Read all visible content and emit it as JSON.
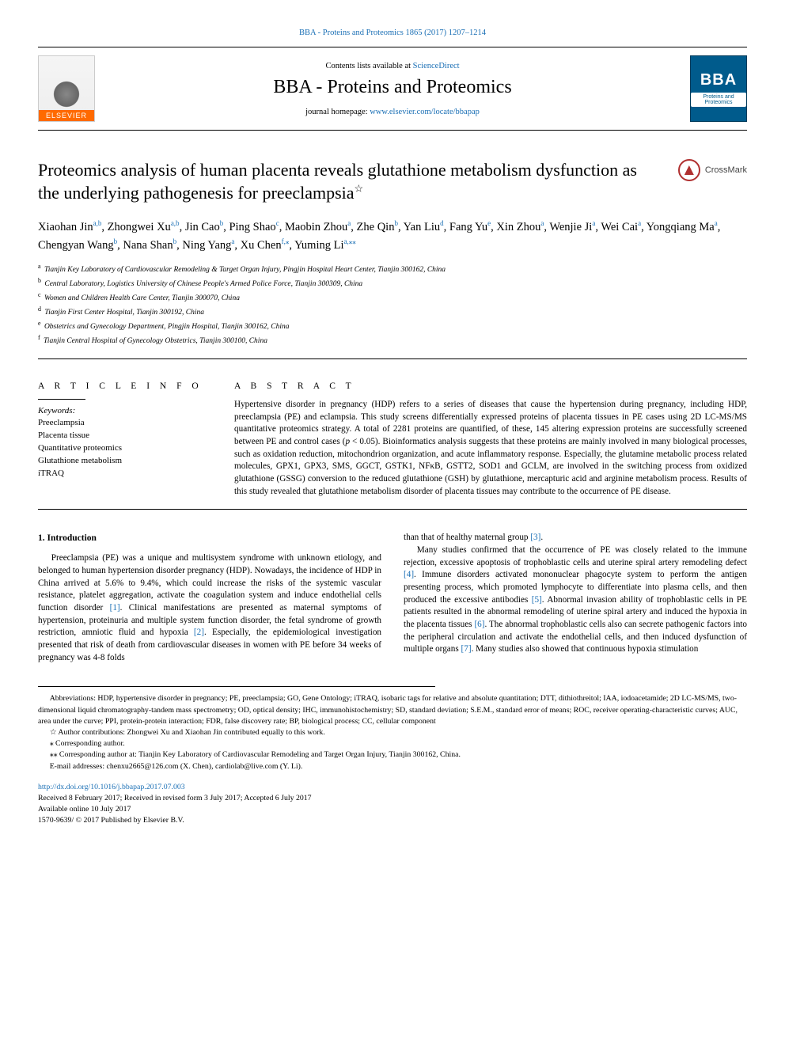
{
  "citation": "BBA - Proteins and Proteomics 1865 (2017) 1207–1214",
  "header": {
    "contents_prefix": "Contents lists available at ",
    "contents_link": "ScienceDirect",
    "journal_name": "BBA - Proteins and Proteomics",
    "homepage_prefix": "journal homepage: ",
    "homepage_link": "www.elsevier.com/locate/bbapap",
    "elsevier_label": "ELSEVIER",
    "bba_big": "BBA",
    "bba_sub": "Proteins and Proteomics"
  },
  "title": "Proteomics analysis of human placenta reveals glutathione metabolism dysfunction as the underlying pathogenesis for preeclampsia",
  "title_star": "☆",
  "crossmark_label": "CrossMark",
  "authors_html": "Xiaohan Jin|a,b|, Zhongwei Xu|a,b|, Jin Cao|b|, Ping Shao|c|, Maobin Zhou|a|, Zhe Qin|b|, Yan Liu|d|, Fang Yu|e|, Xin Zhou|a|, Wenjie Ji|a|, Wei Cai|a|, Yongqiang Ma|a|, Chengyan Wang|b|, Nana Shan|b|, Ning Yang|a|, Xu Chen|f,⁎|, Yuming Li|a,⁎⁎|",
  "affiliations": [
    {
      "sup": "a",
      "text": "Tianjin Key Laboratory of Cardiovascular Remodeling & Target Organ Injury, Pingjin Hospital Heart Center, Tianjin 300162, China"
    },
    {
      "sup": "b",
      "text": "Central Laboratory, Logistics University of Chinese People's Armed Police Force, Tianjin 300309, China"
    },
    {
      "sup": "c",
      "text": "Women and Children Health Care Center, Tianjin 300070, China"
    },
    {
      "sup": "d",
      "text": "Tianjin First Center Hospital, Tianjin 300192, China"
    },
    {
      "sup": "e",
      "text": "Obstetrics and Gynecology Department, Pingjin Hospital, Tianjin 300162, China"
    },
    {
      "sup": "f",
      "text": "Tianjin Central Hospital of Gynecology Obstetrics, Tianjin 300100, China"
    }
  ],
  "article_info_head": "A R T I C L E  I N F O",
  "keywords_label": "Keywords:",
  "keywords": [
    "Preeclampsia",
    "Placenta tissue",
    "Quantitative proteomics",
    "Glutathione metabolism",
    "iTRAQ"
  ],
  "abstract_head": "A B S T R A C T",
  "abstract": "Hypertensive disorder in pregnancy (HDP) refers to a series of diseases that cause the hypertension during pregnancy, including HDP, preeclampsia (PE) and eclampsia. This study screens differentially expressed proteins of placenta tissues in PE cases using 2D LC-MS/MS quantitative proteomics strategy. A total of 2281 proteins are quantified, of these, 145 altering expression proteins are successfully screened between PE and control cases (p < 0.05). Bioinformatics analysis suggests that these proteins are mainly involved in many biological processes, such as oxidation reduction, mitochondrion organization, and acute inflammatory response. Especially, the glutamine metabolic process related molecules, GPX1, GPX3, SMS, GGCT, GSTK1, NFκB, GSTT2, SOD1 and GCLM, are involved in the switching process from oxidized glutathione (GSSG) conversion to the reduced glutathione (GSH) by glutathione, mercapturic acid and arginine metabolism process. Results of this study revealed that glutathione metabolism disorder of placenta tissues may contribute to the occurrence of PE disease.",
  "intro_head": "1. Introduction",
  "intro_p1": "Preeclampsia (PE) was a unique and multisystem syndrome with unknown etiology, and belonged to human hypertension disorder pregnancy (HDP). Nowadays, the incidence of HDP in China arrived at 5.6% to 9.4%, which could increase the risks of the systemic vascular resistance, platelet aggregation, activate the coagulation system and induce endothelial cells function disorder [1]. Clinical manifestations are presented as maternal symptoms of hypertension, proteinuria and multiple system function disorder, the fetal syndrome of growth restriction, amniotic fluid and hypoxia [2]. Especially, the epidemiological investigation presented that risk of death from cardiovascular diseases in women with PE before 34 weeks of pregnancy was 4-8 folds",
  "intro_p2_lead": "than that of healthy maternal group [3].",
  "intro_p2": "Many studies confirmed that the occurrence of PE was closely related to the immune rejection, excessive apoptosis of trophoblastic cells and uterine spiral artery remodeling defect [4]. Immune disorders activated mononuclear phagocyte system to perform the antigen presenting process, which promoted lymphocyte to differentiate into plasma cells, and then produced the excessive antibodies [5]. Abnormal invasion ability of trophoblastic cells in PE patients resulted in the abnormal remodeling of uterine spiral artery and induced the hypoxia in the placenta tissues [6]. The abnormal trophoblastic cells also can secrete pathogenic factors into the peripheral circulation and activate the endothelial cells, and then induced dysfunction of multiple organs [7]. Many studies also showed that continuous hypoxia stimulation",
  "footnotes": {
    "abbrev_label": "Abbreviations:",
    "abbrev": " HDP, hypertensive disorder in pregnancy; PE, preeclampsia; GO, Gene Ontology; iTRAQ, isobaric tags for relative and absolute quantitation; DTT, dithiothreitol; IAA, iodoacetamide; 2D LC-MS/MS, two-dimensional liquid chromatography-tandem mass spectrometry; OD, optical density; IHC, immunohistochemistry; SD, standard deviation; S.E.M., standard error of means; ROC, receiver operating-characteristic curves; AUC, area under the curve; PPI, protein-protein interaction; FDR, false discovery rate; BP, biological process; CC, cellular component",
    "star_note": "☆ Author contributions: Zhongwei Xu and Xiaohan Jin contributed equally to this work.",
    "corr1": "⁎ Corresponding author.",
    "corr2": "⁎⁎ Corresponding author at: Tianjin Key Laboratory of Cardiovascular Remodeling and Target Organ Injury, Tianjin 300162, China.",
    "email_label": "E-mail addresses: ",
    "email1": "chenxu2665@126.com",
    "email1_who": " (X. Chen), ",
    "email2": "cardiolab@live.com",
    "email2_who": " (Y. Li)."
  },
  "bottom": {
    "doi": "http://dx.doi.org/10.1016/j.bbapap.2017.07.003",
    "received": "Received 8 February 2017; Received in revised form 3 July 2017; Accepted 6 July 2017",
    "online": "Available online 10 July 2017",
    "copyright": "1570-9639/ © 2017 Published by Elsevier B.V."
  },
  "colors": {
    "link": "#1a6fb5",
    "elsevier_orange": "#ff6a00",
    "bba_blue": "#005b8c",
    "crossmark_red": "#b03030"
  }
}
